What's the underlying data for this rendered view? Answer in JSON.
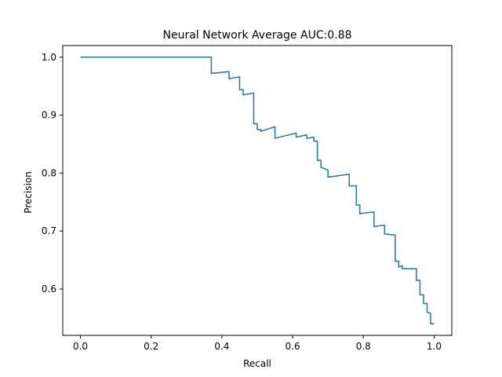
{
  "chart_data": {
    "type": "line",
    "title": "Neural Network Average AUC:0.88",
    "xlabel": "Recall",
    "ylabel": "Precision",
    "xlim": [
      -0.05,
      1.05
    ],
    "ylim": [
      0.52,
      1.02
    ],
    "xticks": [
      0.0,
      0.2,
      0.4,
      0.6,
      0.8,
      1.0
    ],
    "xtick_labels": [
      "0.0",
      "0.2",
      "0.4",
      "0.6",
      "0.8",
      "1.0"
    ],
    "yticks": [
      0.6,
      0.7,
      0.8,
      0.9,
      1.0
    ],
    "ytick_labels": [
      "0.6",
      "0.7",
      "0.8",
      "0.9",
      "1.0"
    ],
    "grid": false,
    "legend": "none",
    "series": [
      {
        "color": "#1f77b4",
        "x": [
          0.0,
          0.37,
          0.37,
          0.42,
          0.42,
          0.45,
          0.45,
          0.46,
          0.46,
          0.49,
          0.49,
          0.5,
          0.5,
          0.51,
          0.51,
          0.55,
          0.55,
          0.61,
          0.61,
          0.64,
          0.64,
          0.66,
          0.66,
          0.67,
          0.67,
          0.68,
          0.68,
          0.7,
          0.7,
          0.76,
          0.76,
          0.78,
          0.78,
          0.79,
          0.79,
          0.83,
          0.83,
          0.86,
          0.86,
          0.89,
          0.89,
          0.9,
          0.9,
          0.91,
          0.91,
          0.95,
          0.95,
          0.96,
          0.96,
          0.97,
          0.97,
          0.98,
          0.98,
          0.99,
          0.99,
          1.0
        ],
        "y": [
          1.0,
          1.0,
          0.972,
          0.975,
          0.963,
          0.966,
          0.944,
          0.944,
          0.935,
          0.938,
          0.885,
          0.885,
          0.875,
          0.875,
          0.872,
          0.88,
          0.86,
          0.869,
          0.862,
          0.866,
          0.86,
          0.862,
          0.855,
          0.855,
          0.822,
          0.822,
          0.81,
          0.805,
          0.793,
          0.798,
          0.778,
          0.778,
          0.745,
          0.745,
          0.73,
          0.733,
          0.708,
          0.71,
          0.695,
          0.693,
          0.648,
          0.648,
          0.638,
          0.64,
          0.635,
          0.635,
          0.615,
          0.615,
          0.59,
          0.59,
          0.575,
          0.575,
          0.56,
          0.558,
          0.54,
          0.54
        ]
      }
    ]
  }
}
